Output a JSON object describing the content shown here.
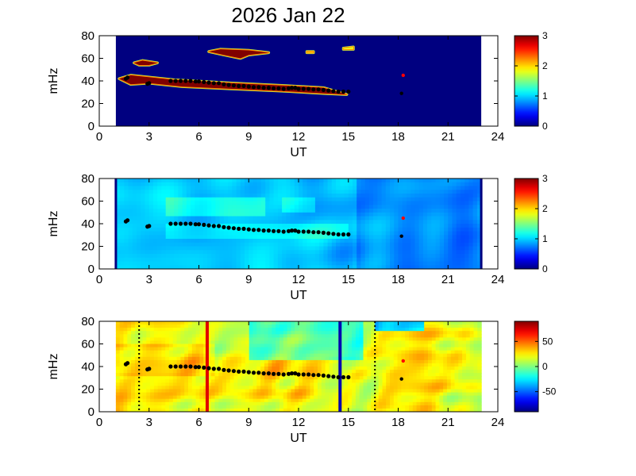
{
  "title": "2026 Jan 22",
  "chart_data": [
    {
      "type": "heatmap",
      "panel": "top",
      "xlabel": "UT",
      "ylabel": "mHz",
      "xlim": [
        0,
        24
      ],
      "ylim": [
        0,
        80
      ],
      "xticks": [
        0,
        3,
        6,
        9,
        12,
        15,
        18,
        21,
        24
      ],
      "yticks": [
        0,
        20,
        40,
        60,
        80
      ],
      "data_x_range": [
        1,
        23
      ],
      "colorbar": {
        "range": [
          0,
          3
        ],
        "ticks": [
          0,
          1,
          2,
          3
        ]
      },
      "background_level": 0,
      "features": [
        {
          "kind": "band",
          "level": 3,
          "points": [
            [
              1.2,
              42
            ],
            [
              1.9,
              45
            ],
            [
              4.5,
              41
            ],
            [
              8,
              38
            ],
            [
              11,
              36
            ],
            [
              13.5,
              34
            ],
            [
              14.9,
              28
            ],
            [
              13.5,
              29
            ],
            [
              11,
              31
            ],
            [
              8,
              33
            ],
            [
              5,
              35
            ],
            [
              3,
              38
            ],
            [
              1.9,
              37
            ]
          ]
        },
        {
          "kind": "band",
          "level": 3,
          "points": [
            [
              6.6,
              66
            ],
            [
              7.3,
              68
            ],
            [
              9,
              67
            ],
            [
              10.2,
              65
            ],
            [
              9,
              63
            ],
            [
              8.5,
              60
            ],
            [
              7.5,
              63
            ]
          ]
        },
        {
          "kind": "band",
          "level": 3,
          "points": [
            [
              2.1,
              56
            ],
            [
              2.6,
              58
            ],
            [
              3.5,
              56
            ],
            [
              3,
              54
            ],
            [
              2.4,
              54
            ]
          ]
        },
        {
          "kind": "spot",
          "level": 1.8,
          "points": [
            [
              14.7,
              69
            ],
            [
              15.3,
              70
            ],
            [
              15.3,
              68
            ],
            [
              14.7,
              68
            ]
          ]
        },
        {
          "kind": "spot",
          "level": 2,
          "points": [
            [
              12.5,
              66
            ],
            [
              12.9,
              66
            ],
            [
              12.9,
              65
            ],
            [
              12.5,
              65
            ]
          ]
        }
      ],
      "dots": [
        {
          "x": 18.2,
          "y": 29,
          "color": "#000000"
        },
        {
          "x": 18.3,
          "y": 45,
          "color": "#ff0000"
        }
      ]
    },
    {
      "type": "heatmap",
      "panel": "middle",
      "xlabel": "UT",
      "ylabel": "mHz",
      "xlim": [
        0,
        24
      ],
      "ylim": [
        0,
        80
      ],
      "xticks": [
        0,
        3,
        6,
        9,
        12,
        15,
        18,
        21,
        24
      ],
      "yticks": [
        0,
        20,
        40,
        60,
        80
      ],
      "data_x_range": [
        1,
        23
      ],
      "colorbar": {
        "range": [
          0,
          3
        ],
        "ticks": [
          0,
          1,
          2,
          3
        ]
      },
      "dots": [
        {
          "x": 18.2,
          "y": 29,
          "color": "#000000"
        },
        {
          "x": 18.3,
          "y": 45,
          "color": "#ff0000"
        }
      ]
    },
    {
      "type": "heatmap",
      "panel": "bottom",
      "xlabel": "UT",
      "ylabel": "mHz",
      "xlim": [
        0,
        24
      ],
      "ylim": [
        0,
        80
      ],
      "xticks": [
        0,
        3,
        6,
        9,
        12,
        15,
        18,
        21,
        24
      ],
      "yticks": [
        0,
        20,
        40,
        60,
        80
      ],
      "data_x_range": [
        1,
        23
      ],
      "colorbar": {
        "range": [
          -90,
          90
        ],
        "ticks": [
          -50,
          0,
          50
        ]
      },
      "vlines": [
        {
          "x": 6.5,
          "color": "#e00000",
          "style": "solid"
        },
        {
          "x": 14.5,
          "color": "#0000b0",
          "style": "solid"
        },
        {
          "x": 2.4,
          "color": "#000000",
          "style": "dotted"
        },
        {
          "x": 16.6,
          "color": "#000000",
          "style": "dotted"
        }
      ],
      "dots": [
        {
          "x": 18.2,
          "y": 29,
          "color": "#000000"
        },
        {
          "x": 18.3,
          "y": 45,
          "color": "#ff0000"
        }
      ]
    }
  ],
  "ridge_line": {
    "color": "#000000",
    "points": [
      [
        1.6,
        42
      ],
      [
        1.7,
        43
      ],
      [
        2.9,
        37.5
      ],
      [
        3.0,
        38
      ],
      [
        4.3,
        40
      ],
      [
        4.6,
        40
      ],
      [
        4.9,
        40
      ],
      [
        5.2,
        40
      ],
      [
        5.5,
        40
      ],
      [
        5.8,
        39.5
      ],
      [
        6.0,
        39.5
      ],
      [
        6.3,
        39
      ],
      [
        6.6,
        38.5
      ],
      [
        6.9,
        38
      ],
      [
        7.2,
        38
      ],
      [
        7.5,
        37
      ],
      [
        7.8,
        36.5
      ],
      [
        8.1,
        36
      ],
      [
        8.4,
        35.5
      ],
      [
        8.7,
        35.5
      ],
      [
        9.0,
        35
      ],
      [
        9.3,
        34.5
      ],
      [
        9.6,
        34.5
      ],
      [
        9.9,
        34
      ],
      [
        10.2,
        34
      ],
      [
        10.5,
        33.5
      ],
      [
        10.8,
        33.5
      ],
      [
        11.1,
        33
      ],
      [
        11.4,
        33.5
      ],
      [
        11.6,
        34
      ],
      [
        11.8,
        34
      ],
      [
        12.0,
        33
      ],
      [
        12.3,
        33
      ],
      [
        12.6,
        33
      ],
      [
        12.9,
        32.5
      ],
      [
        13.2,
        32.5
      ],
      [
        13.5,
        32
      ],
      [
        13.8,
        31.5
      ],
      [
        14.1,
        31
      ],
      [
        14.4,
        30.5
      ],
      [
        14.7,
        30.5
      ],
      [
        15.0,
        30.5
      ]
    ]
  }
}
